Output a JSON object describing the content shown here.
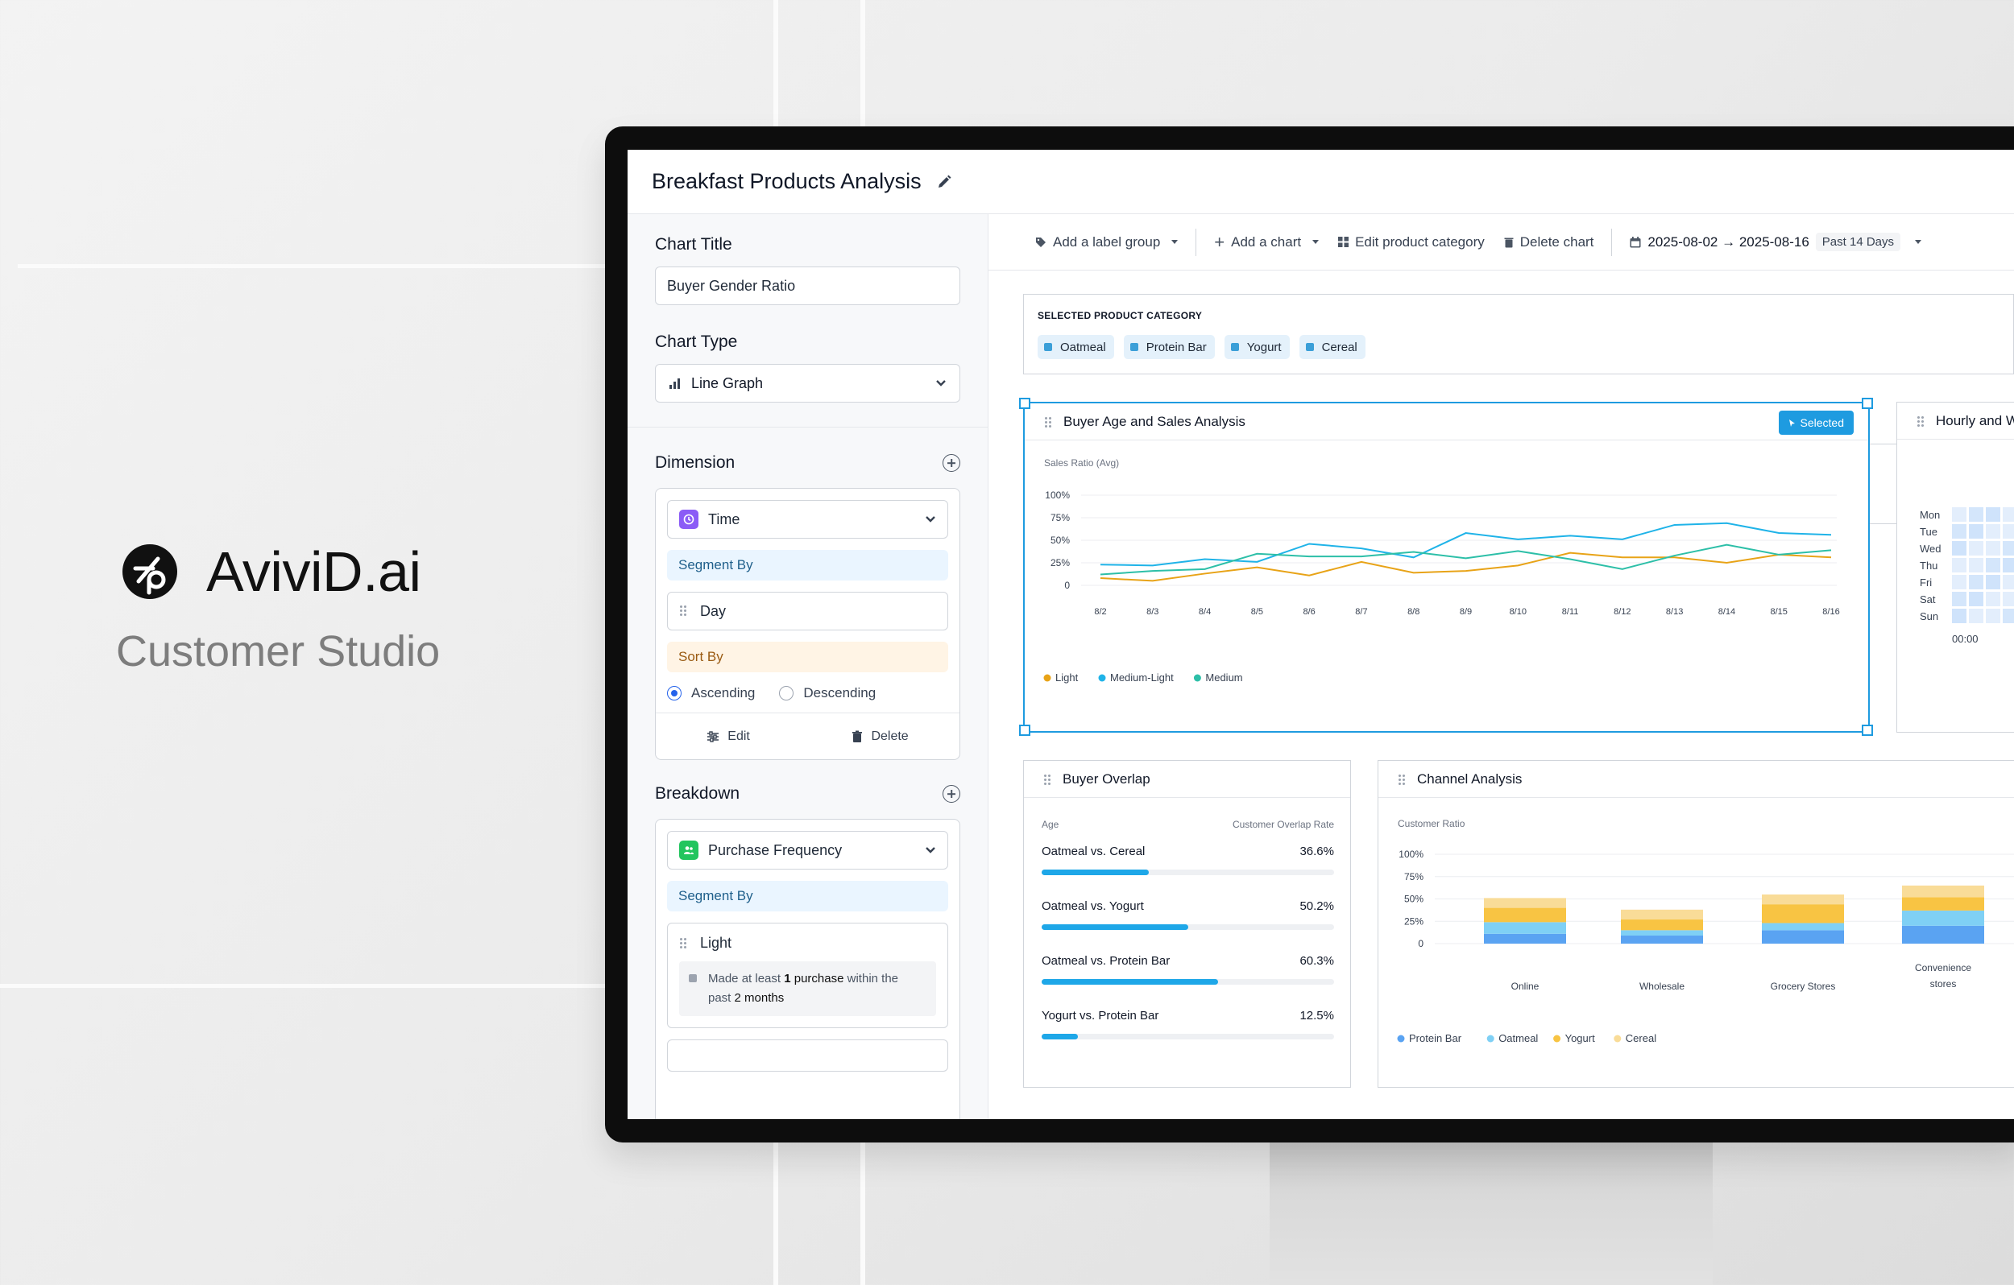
{
  "brand": {
    "name": "AviviD.ai",
    "subtitle": "Customer Studio"
  },
  "header": {
    "title": "Breakfast Products Analysis"
  },
  "left_panel": {
    "chart_title_label": "Chart Title",
    "chart_title_value": "Buyer Gender Ratio",
    "chart_type_label": "Chart Type",
    "chart_type_value": "Line Graph",
    "dimension": {
      "label": "Dimension",
      "field": "Time",
      "segment_by": "Segment By",
      "segment_item": "Day",
      "sort_by": "Sort By",
      "ascending": "Ascending",
      "descending": "Descending",
      "edit": "Edit",
      "delete": "Delete"
    },
    "breakdown": {
      "label": "Breakdown",
      "field": "Purchase Frequency",
      "segment_by": "Segment By",
      "item": "Light",
      "desc_prefix": "Made at least",
      "desc_num1": "1",
      "desc_mid": "purchase",
      "desc_mid2": "within the",
      "desc_line2_pre": "past",
      "desc_num2": "2 months"
    }
  },
  "toolbar": {
    "add_label_group": "Add a label group",
    "add_chart": "Add a chart",
    "edit_category": "Edit product category",
    "delete_chart": "Delete chart",
    "date_range": "2025-08-02 → 2025-08-16",
    "date_preset": "Past 14 Days"
  },
  "category": {
    "title": "SELECTED PRODUCT CATEGORY",
    "chips": [
      "Oatmeal",
      "Protein Bar",
      "Yogurt",
      "Cereal"
    ]
  },
  "line_panel": {
    "title": "Buyer Age and Sales Analysis",
    "selected_badge": "Selected",
    "axis_title": "Sales Ratio (Avg)",
    "legend": [
      "Light",
      "Medium-Light",
      "Medium"
    ]
  },
  "heat_panel": {
    "title": "Hourly and W",
    "days": [
      "Mon",
      "Tue",
      "Wed",
      "Thu",
      "Fri",
      "Sat",
      "Sun"
    ],
    "x_label": "00:00"
  },
  "overlap_panel": {
    "title": "Buyer Overlap",
    "col_left": "Age",
    "col_right": "Customer Overlap Rate",
    "rows": [
      {
        "label": "Oatmeal vs. Cereal",
        "value": "36.6%",
        "pct": 0.366
      },
      {
        "label": "Oatmeal vs. Yogurt",
        "value": "50.2%",
        "pct": 0.502
      },
      {
        "label": "Oatmeal vs. Protein Bar",
        "value": "60.3%",
        "pct": 0.603
      },
      {
        "label": "Yogurt vs. Protein Bar",
        "value": "12.5%",
        "pct": 0.125
      }
    ]
  },
  "channel_panel": {
    "title": "Channel Analysis",
    "axis_title": "Customer Ratio"
  },
  "colors": {
    "light": "#e8a317",
    "medium_light": "#1fb3e8",
    "medium": "#2dbfa8",
    "protein_bar": "#5aa3f2",
    "oatmeal": "#7fd0f5",
    "yogurt": "#f8c443",
    "cereal": "#f9dc98"
  },
  "chart_data": [
    {
      "type": "line",
      "title": "Buyer Age and Sales Analysis",
      "ylabel": "Sales Ratio (Avg)",
      "x": [
        "8/2",
        "8/3",
        "8/4",
        "8/5",
        "8/6",
        "8/7",
        "8/8",
        "8/9",
        "8/10",
        "8/11",
        "8/12",
        "8/13",
        "8/14",
        "8/15",
        "8/16"
      ],
      "yticks": [
        "0",
        "25%",
        "50%",
        "75%",
        "100%"
      ],
      "ylim": [
        0,
        100
      ],
      "series": [
        {
          "name": "Light",
          "color": "#e8a317",
          "values": [
            8,
            5,
            13,
            20,
            11,
            26,
            14,
            16,
            22,
            36,
            31,
            31,
            25,
            34,
            31
          ]
        },
        {
          "name": "Medium-Light",
          "color": "#1fb3e8",
          "values": [
            23,
            22,
            29,
            26,
            46,
            41,
            31,
            58,
            51,
            55,
            51,
            67,
            69,
            58,
            56
          ]
        },
        {
          "name": "Medium",
          "color": "#2dbfa8",
          "values": [
            12,
            16,
            18,
            35,
            32,
            32,
            37,
            30,
            38,
            29,
            18,
            33,
            45,
            34,
            39
          ]
        }
      ],
      "legend": "bottom-left",
      "grid": true
    },
    {
      "type": "bar",
      "stacked": true,
      "title": "Channel Analysis",
      "ylabel": "Customer Ratio",
      "categories": [
        "Online",
        "Wholesale",
        "Grocery Stores",
        "Convenience stores"
      ],
      "yticks": [
        "0",
        "25%",
        "50%",
        "75%",
        "100%"
      ],
      "ylim": [
        0,
        100
      ],
      "series": [
        {
          "name": "Protein Bar",
          "color": "#5aa3f2",
          "values": [
            11,
            9,
            15,
            20
          ]
        },
        {
          "name": "Oatmeal",
          "color": "#7fd0f5",
          "values": [
            13,
            6,
            8,
            17
          ]
        },
        {
          "name": "Yogurt",
          "color": "#f8c443",
          "values": [
            16,
            12,
            21,
            15
          ]
        },
        {
          "name": "Cereal",
          "color": "#f9dc98",
          "values": [
            11,
            11,
            11,
            13
          ]
        }
      ],
      "legend": "bottom-left",
      "grid": true
    }
  ]
}
